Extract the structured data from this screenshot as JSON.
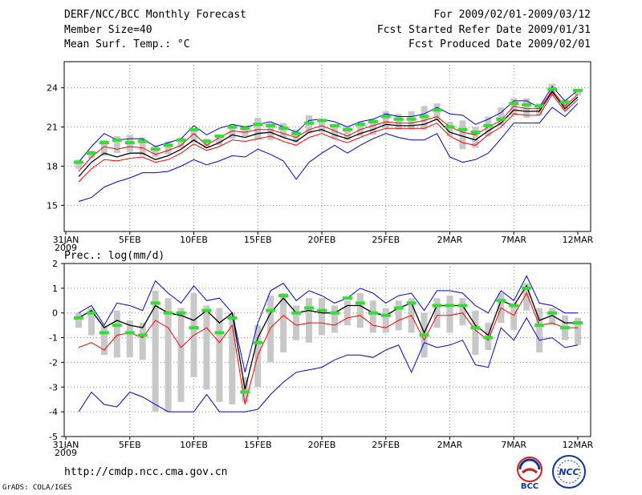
{
  "header": {
    "title": "DERF/NCC/BCC Monthly Forecast",
    "member_size": "Member Size=40",
    "variable": "Mean Surf. Temp.: °C",
    "period": "For 2009/02/01-2009/03/12",
    "refer_date": "Fcst Started Refer Date 2009/01/31",
    "produced_date": "Fcst Produced Date 2009/02/01"
  },
  "footer": {
    "url": "http://cmdp.ncc.cma.gov.cn",
    "grads": "GrADS: COLA/IGES",
    "logo_bcc": "BCC",
    "logo_ncc": "NCC"
  },
  "colors": {
    "mean": "#000000",
    "red": "#ff0000",
    "blue": "#0000dd",
    "box": "#c8c8c8",
    "obs": "#33dd33"
  },
  "chart_data": [
    {
      "type": "line",
      "name": "temperature",
      "title": "",
      "xlabel": "",
      "ylabel": "",
      "ylim": [
        13,
        26
      ],
      "yticks": [
        15,
        18,
        21,
        24
      ],
      "x_ticks": [
        {
          "day": 0,
          "label": "31JAN",
          "sub": "2009"
        },
        {
          "day": 5,
          "label": "5FEB"
        },
        {
          "day": 10,
          "label": "10FEB"
        },
        {
          "day": 15,
          "label": "15FEB"
        },
        {
          "day": 20,
          "label": "20FEB"
        },
        {
          "day": 25,
          "label": "25FEB"
        },
        {
          "day": 30,
          "label": "2MAR"
        },
        {
          "day": 35,
          "label": "7MAR"
        },
        {
          "day": 40,
          "label": "12MAR"
        }
      ],
      "x": [
        1,
        2,
        3,
        4,
        5,
        6,
        7,
        8,
        9,
        10,
        11,
        12,
        13,
        14,
        15,
        16,
        17,
        18,
        19,
        20,
        21,
        22,
        23,
        24,
        25,
        26,
        27,
        28,
        29,
        30,
        31,
        32,
        33,
        34,
        35,
        36,
        37,
        38,
        39,
        40
      ],
      "series": [
        {
          "name": "max",
          "values": [
            18.3,
            19.5,
            20.5,
            20.0,
            20.1,
            20.1,
            19.5,
            19.8,
            20.1,
            21.1,
            20.4,
            20.9,
            21.2,
            21.0,
            21.2,
            21.4,
            21.0,
            20.6,
            21.5,
            21.6,
            21.4,
            21.0,
            21.4,
            21.6,
            22.0,
            21.8,
            21.8,
            22.0,
            22.5,
            22.0,
            21.9,
            21.2,
            21.6,
            22.1,
            23.0,
            23.0,
            22.5,
            24.1,
            23.0,
            23.8
          ]
        },
        {
          "name": "red_upper",
          "values": [
            17.6,
            18.7,
            19.5,
            19.3,
            19.5,
            19.4,
            18.9,
            19.2,
            19.6,
            20.5,
            19.6,
            20.2,
            20.7,
            20.6,
            20.8,
            20.8,
            20.5,
            20.2,
            20.8,
            21.1,
            20.7,
            20.3,
            20.8,
            21.1,
            21.4,
            21.3,
            21.3,
            21.5,
            21.8,
            21.0,
            20.6,
            20.4,
            21.0,
            21.5,
            22.6,
            22.4,
            22.4,
            23.8,
            22.6,
            23.5
          ]
        },
        {
          "name": "mean",
          "values": [
            17.2,
            18.3,
            19.0,
            18.7,
            19.0,
            19.0,
            18.5,
            18.8,
            19.3,
            20.0,
            19.4,
            19.8,
            20.4,
            20.2,
            20.5,
            20.6,
            20.2,
            19.9,
            20.6,
            20.8,
            20.4,
            20.1,
            20.5,
            20.8,
            21.2,
            21.1,
            21.1,
            21.2,
            21.6,
            20.6,
            20.3,
            20.0,
            20.7,
            21.3,
            22.3,
            22.2,
            22.2,
            23.7,
            22.4,
            23.3
          ]
        },
        {
          "name": "red_lower",
          "values": [
            16.8,
            17.8,
            18.5,
            18.4,
            18.6,
            18.7,
            18.3,
            18.5,
            19.0,
            19.7,
            19.2,
            19.5,
            20.0,
            19.9,
            20.1,
            20.3,
            19.9,
            19.6,
            20.2,
            20.5,
            20.1,
            19.8,
            20.2,
            20.6,
            20.9,
            20.9,
            20.9,
            20.9,
            21.3,
            20.3,
            19.8,
            19.6,
            20.4,
            21.0,
            22.0,
            21.9,
            21.9,
            23.5,
            22.2,
            23.1
          ]
        },
        {
          "name": "min",
          "values": [
            15.3,
            15.6,
            16.4,
            16.8,
            17.1,
            17.5,
            17.5,
            17.6,
            18.0,
            18.5,
            18.1,
            18.4,
            18.8,
            18.7,
            19.3,
            18.9,
            18.4,
            17.0,
            18.3,
            19.0,
            19.6,
            19.0,
            19.6,
            20.1,
            20.5,
            20.2,
            20.0,
            20.0,
            20.5,
            18.7,
            18.3,
            18.5,
            19.0,
            20.1,
            21.3,
            21.3,
            21.3,
            22.5,
            21.8,
            22.8
          ]
        },
        {
          "name": "obs",
          "values": [
            18.3,
            19.0,
            19.8,
            20.0,
            19.8,
            19.9,
            19.3,
            19.6,
            20.0,
            20.8,
            19.9,
            20.3,
            21.0,
            20.9,
            21.2,
            21.1,
            20.9,
            20.5,
            21.3,
            21.5,
            21.1,
            20.8,
            21.2,
            21.4,
            21.8,
            21.6,
            21.6,
            21.8,
            22.3,
            21.0,
            20.8,
            20.6,
            21.1,
            21.6,
            22.8,
            22.7,
            22.6,
            23.9,
            22.9,
            23.8
          ]
        },
        {
          "name": "box_high",
          "values": [
            18.5,
            19.2,
            20.0,
            20.3,
            20.4,
            20.2,
            19.6,
            19.9,
            20.2,
            20.9,
            20.1,
            20.4,
            21.1,
            21.1,
            21.7,
            21.3,
            21.3,
            20.8,
            21.9,
            21.6,
            21.2,
            21.0,
            21.4,
            21.6,
            22.2,
            22.0,
            22.2,
            22.6,
            22.8,
            21.4,
            21.5,
            21.0,
            21.8,
            22.5,
            23.2,
            23.2,
            22.8,
            24.3,
            23.1,
            23.9
          ]
        },
        {
          "name": "box_low",
          "values": [
            17.8,
            18.6,
            18.8,
            19.0,
            19.1,
            18.8,
            18.7,
            18.9,
            19.4,
            19.8,
            19.4,
            19.6,
            20.1,
            20.3,
            20.0,
            20.0,
            20.2,
            19.8,
            20.5,
            20.6,
            20.1,
            20.0,
            20.3,
            20.4,
            20.9,
            20.8,
            20.8,
            20.8,
            21.5,
            20.3,
            19.3,
            19.4,
            20.3,
            21.1,
            21.9,
            21.7,
            21.9,
            23.4,
            22.3,
            23.4
          ]
        }
      ]
    },
    {
      "type": "line",
      "name": "precipitation",
      "title": "Prec.: log(mm/d)",
      "xlabel": "",
      "ylabel": "",
      "ylim": [
        -5,
        2
      ],
      "yticks": [
        -5,
        -4,
        -3,
        -2,
        -1,
        0,
        1,
        2
      ],
      "x_ticks": [
        {
          "day": 0,
          "label": "31JAN",
          "sub": "2009"
        },
        {
          "day": 5,
          "label": "5FEB"
        },
        {
          "day": 10,
          "label": "10FEB"
        },
        {
          "day": 15,
          "label": "15FEB"
        },
        {
          "day": 20,
          "label": "20FEB"
        },
        {
          "day": 25,
          "label": "25FEB"
        },
        {
          "day": 30,
          "label": "2MAR"
        },
        {
          "day": 35,
          "label": "7MAR"
        },
        {
          "day": 40,
          "label": "12MAR"
        }
      ],
      "x": [
        1,
        2,
        3,
        4,
        5,
        6,
        7,
        8,
        9,
        10,
        11,
        12,
        13,
        14,
        15,
        16,
        17,
        18,
        19,
        20,
        21,
        22,
        23,
        24,
        25,
        26,
        27,
        28,
        29,
        30,
        31,
        32,
        33,
        34,
        35,
        36,
        37,
        38,
        39,
        40
      ],
      "series": [
        {
          "name": "max",
          "values": [
            0.0,
            0.3,
            -0.5,
            0.4,
            0.3,
            0.1,
            1.3,
            0.8,
            0.4,
            1.1,
            0.5,
            0.6,
            0.0,
            -2.4,
            -0.4,
            0.9,
            1.2,
            0.5,
            0.9,
            0.7,
            0.4,
            0.6,
            1.0,
            0.8,
            0.4,
            0.7,
            0.8,
            0.1,
            0.9,
            0.9,
            0.8,
            0.3,
            0.0,
            0.9,
            0.5,
            1.5,
            0.4,
            0.3,
            0.0,
            0.0
          ]
        },
        {
          "name": "mean",
          "values": [
            -0.2,
            0.1,
            -0.6,
            -0.3,
            -0.5,
            -0.6,
            0.3,
            0.0,
            -0.1,
            -0.3,
            0.1,
            -0.4,
            0.0,
            -3.1,
            -1.0,
            0.0,
            0.6,
            0.0,
            0.1,
            0.0,
            0.0,
            0.3,
            0.3,
            0.0,
            -0.1,
            0.2,
            0.4,
            -0.8,
            0.3,
            0.3,
            0.3,
            -0.5,
            -0.9,
            0.5,
            0.3,
            1.1,
            -0.3,
            -0.1,
            -0.4,
            -0.4
          ]
        },
        {
          "name": "red_lower",
          "values": [
            -1.4,
            -1.2,
            -1.5,
            -0.9,
            -0.8,
            -1.0,
            -0.3,
            -0.6,
            -1.4,
            -0.9,
            -0.6,
            -1.2,
            -0.5,
            -3.7,
            -1.7,
            -0.6,
            -0.1,
            -0.5,
            -0.4,
            -0.4,
            -0.5,
            -0.2,
            -0.1,
            -0.5,
            -0.6,
            -0.3,
            -0.1,
            -1.1,
            -0.1,
            -0.1,
            0.0,
            -0.7,
            -1.1,
            0.2,
            -0.1,
            0.8,
            -0.5,
            -0.4,
            -0.6,
            -0.6
          ]
        },
        {
          "name": "min",
          "values": [
            -4.0,
            -3.2,
            -3.7,
            -3.8,
            -3.2,
            -3.4,
            -3.7,
            -4.0,
            -4.0,
            -4.0,
            -3.3,
            -4.0,
            -4.0,
            -4.0,
            -3.9,
            -3.3,
            -2.8,
            -2.4,
            -2.3,
            -2.2,
            -1.9,
            -1.7,
            -1.7,
            -1.8,
            -1.5,
            -1.3,
            -2.4,
            -1.2,
            -1.4,
            -1.3,
            -1.1,
            -2.1,
            -2.2,
            -0.6,
            -1.1,
            -0.2,
            -1.1,
            -1.0,
            -1.4,
            -1.3
          ]
        },
        {
          "name": "obs",
          "values": [
            -0.2,
            0.0,
            -0.8,
            -0.5,
            -0.8,
            -0.9,
            0.4,
            0.0,
            0.0,
            -0.6,
            0.1,
            -0.8,
            -0.2,
            -3.2,
            -1.2,
            0.1,
            0.7,
            0.0,
            0.2,
            0.1,
            0.0,
            0.6,
            0.4,
            0.0,
            -0.1,
            0.2,
            0.4,
            -0.9,
            0.3,
            0.3,
            0.3,
            -0.6,
            -1.0,
            0.5,
            0.3,
            1.0,
            -0.5,
            0.0,
            -0.6,
            -0.4
          ]
        },
        {
          "name": "box_high",
          "values": [
            0.0,
            0.2,
            -0.5,
            0.1,
            -0.3,
            -0.4,
            0.9,
            0.6,
            0.2,
            0.8,
            0.3,
            0.2,
            0.0,
            -2.6,
            -0.5,
            0.7,
            0.8,
            0.3,
            0.6,
            0.6,
            0.3,
            0.5,
            0.8,
            0.5,
            0.2,
            0.5,
            0.6,
            0.0,
            0.6,
            0.7,
            0.6,
            0.1,
            -0.4,
            0.8,
            0.4,
            1.2,
            0.2,
            0.2,
            -0.1,
            -0.2
          ]
        },
        {
          "name": "box_low",
          "values": [
            -0.6,
            -0.9,
            -1.7,
            -1.8,
            -1.8,
            -1.9,
            -4.0,
            -4.0,
            -3.6,
            -2.6,
            -3.1,
            -3.6,
            -3.7,
            -3.6,
            -3.0,
            -2.0,
            -1.6,
            -1.1,
            -1.2,
            -0.9,
            -0.8,
            -0.5,
            -0.6,
            -0.8,
            -0.8,
            -0.7,
            -0.8,
            -1.8,
            -0.6,
            -0.8,
            -0.5,
            -1.7,
            -1.5,
            -0.4,
            -0.7,
            0.1,
            -1.6,
            -0.5,
            -1.1,
            -1.3
          ]
        }
      ]
    }
  ]
}
